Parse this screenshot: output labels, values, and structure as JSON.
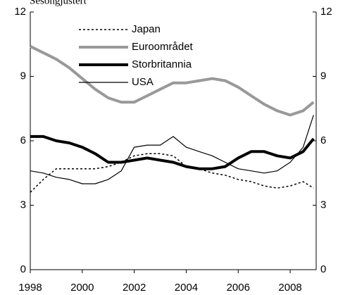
{
  "chart_data": {
    "type": "line",
    "subtitle": "Sesongjustert",
    "x": [
      1998,
      1998.5,
      1999,
      1999.5,
      2000,
      2000.5,
      2001,
      2001.5,
      2002,
      2002.5,
      2003,
      2003.5,
      2004,
      2004.5,
      2005,
      2005.5,
      2006,
      2006.5,
      2007,
      2007.5,
      2008,
      2008.5,
      2008.9
    ],
    "series": [
      {
        "name": "Japan",
        "color": "#000000",
        "style": "dotted",
        "width": 1.5,
        "values": [
          3.6,
          4.2,
          4.7,
          4.7,
          4.7,
          4.7,
          4.8,
          5.0,
          5.3,
          5.4,
          5.4,
          5.3,
          4.8,
          4.7,
          4.5,
          4.4,
          4.2,
          4.1,
          3.9,
          3.8,
          3.9,
          4.1,
          3.8
        ]
      },
      {
        "name": "Euroområdet",
        "color": "#999999",
        "style": "solid",
        "width": 4,
        "values": [
          10.4,
          10.1,
          9.8,
          9.4,
          8.9,
          8.4,
          8.0,
          7.8,
          7.8,
          8.1,
          8.4,
          8.7,
          8.7,
          8.8,
          8.9,
          8.8,
          8.5,
          8.1,
          7.7,
          7.4,
          7.2,
          7.4,
          7.8
        ]
      },
      {
        "name": "Storbritannia",
        "color": "#000000",
        "style": "solid",
        "width": 4,
        "values": [
          6.2,
          6.2,
          6.0,
          5.9,
          5.7,
          5.4,
          5.0,
          5.0,
          5.1,
          5.2,
          5.1,
          5.0,
          4.8,
          4.7,
          4.7,
          4.8,
          5.2,
          5.5,
          5.5,
          5.3,
          5.2,
          5.5,
          6.1
        ]
      },
      {
        "name": "USA",
        "color": "#000000",
        "style": "solid",
        "width": 1.2,
        "values": [
          4.6,
          4.5,
          4.3,
          4.2,
          4.0,
          4.0,
          4.2,
          4.6,
          5.7,
          5.8,
          5.8,
          6.2,
          5.7,
          5.5,
          5.3,
          5.0,
          4.7,
          4.6,
          4.5,
          4.6,
          5.0,
          5.7,
          7.2
        ]
      }
    ],
    "xlim": [
      1998,
      2009
    ],
    "xticks": [
      1998,
      2000,
      2002,
      2004,
      2006,
      2008
    ],
    "ylim": [
      0,
      12
    ],
    "yticks": [
      0,
      3,
      6,
      9,
      12
    ],
    "y2lim": [
      0,
      12
    ],
    "y2ticks": [
      0,
      3,
      6,
      9,
      12
    ],
    "legend": "top-left"
  }
}
